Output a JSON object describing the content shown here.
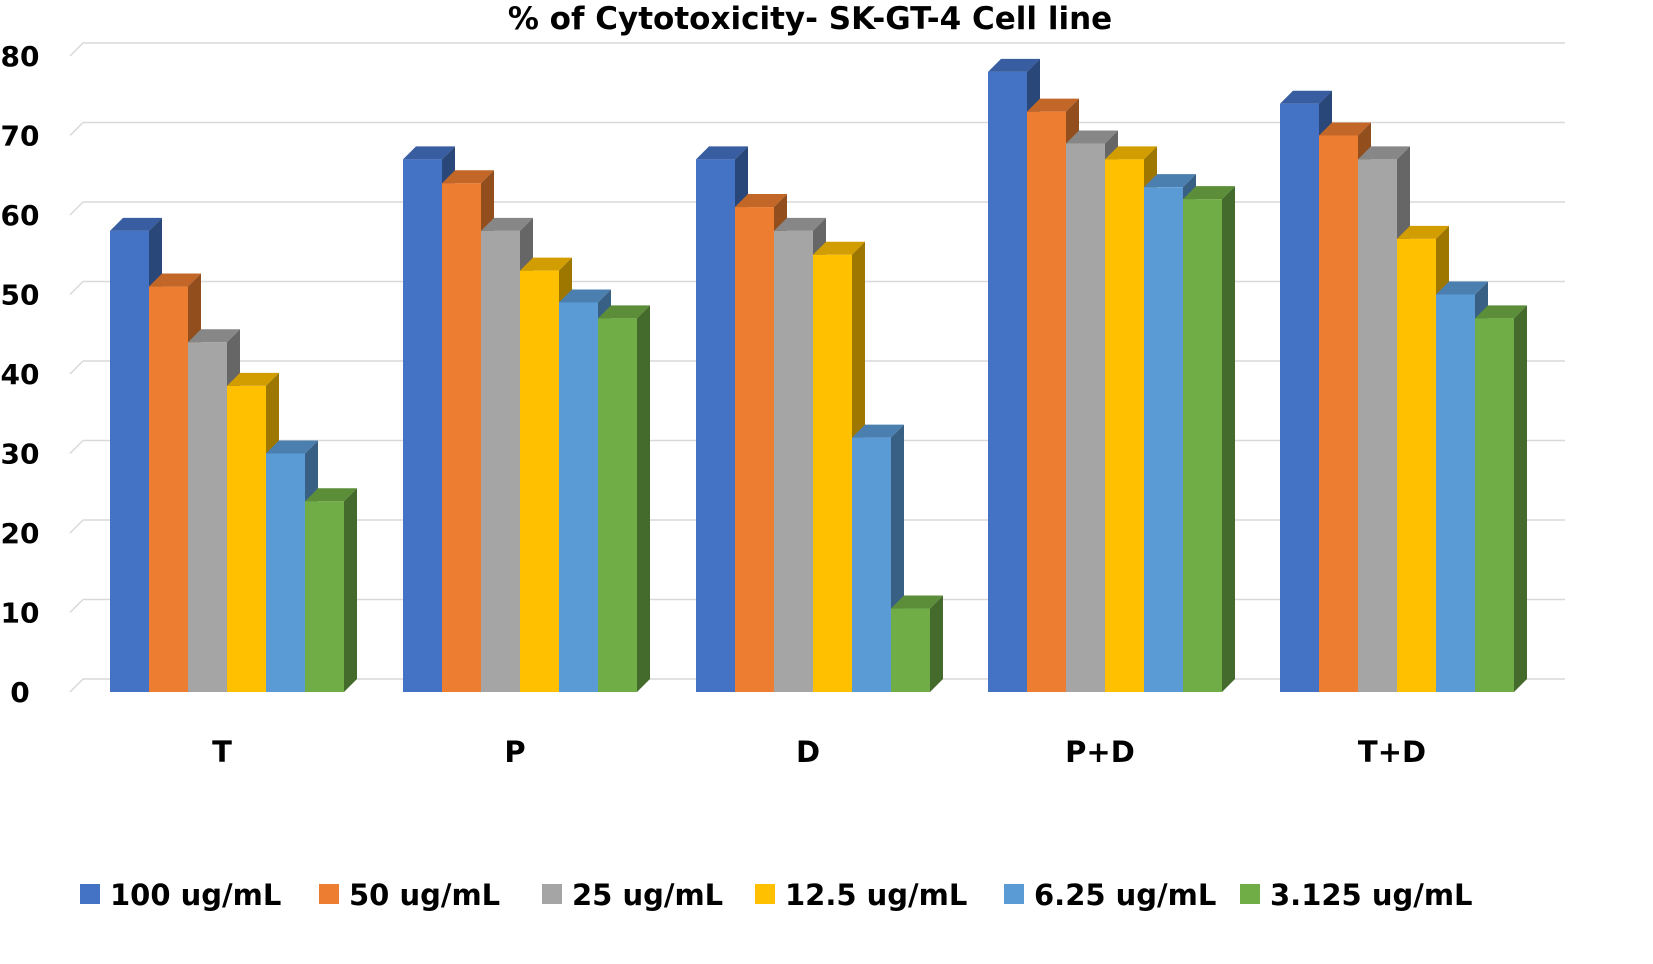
{
  "chart_data": {
    "type": "bar",
    "title": "% of Cytotoxicity- SK-GT-4 Cell line",
    "xlabel": "",
    "ylabel": "",
    "categories": [
      "T",
      "P",
      "D",
      "P+D",
      "T+D"
    ],
    "ylim": [
      0,
      80
    ],
    "yticks": [
      0,
      10,
      20,
      30,
      40,
      50,
      60,
      70,
      80
    ],
    "grid": true,
    "legend_position": "bottom",
    "style": "3d-clustered-column",
    "series": [
      {
        "name": "100 ug/mL",
        "color": "#4472C4",
        "values": [
          58,
          67,
          67,
          78,
          74
        ]
      },
      {
        "name": "50 ug/mL",
        "color": "#ED7D31",
        "values": [
          51,
          64,
          61,
          73,
          70
        ]
      },
      {
        "name": "25 ug/mL",
        "color": "#A5A5A5",
        "values": [
          44,
          58,
          58,
          69,
          67
        ]
      },
      {
        "name": "12.5 ug/mL",
        "color": "#FFC000",
        "values": [
          38.5,
          53,
          55,
          67,
          57
        ]
      },
      {
        "name": "6.25 ug/mL",
        "color": "#5B9BD5",
        "values": [
          30,
          49,
          32,
          63.5,
          50
        ]
      },
      {
        "name": "3.125 ug/mL",
        "color": "#70AD47",
        "values": [
          24,
          47,
          10.5,
          62,
          47
        ]
      }
    ]
  }
}
